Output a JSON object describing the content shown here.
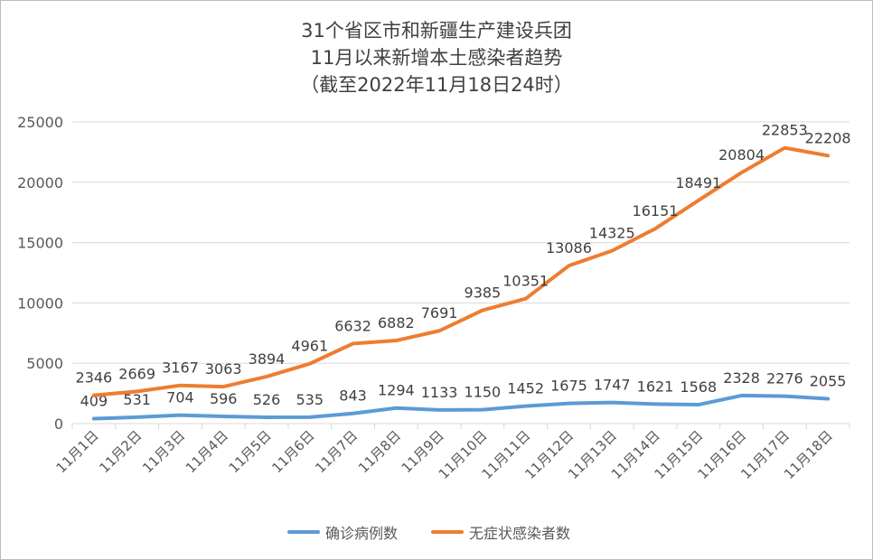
{
  "chart_data": {
    "type": "line",
    "title": [
      "31个省区市和新疆生产建设兵团",
      "11月以来新增本土感染者趋势",
      "（截至2022年11月18日24时）"
    ],
    "categories": [
      "11月1日",
      "11月2日",
      "11月3日",
      "11月4日",
      "11月5日",
      "11月6日",
      "11月7日",
      "11月8日",
      "11月9日",
      "11月10日",
      "11月11日",
      "11月12日",
      "11月13日",
      "11月14日",
      "11月15日",
      "11月16日",
      "11月17日",
      "11月18日"
    ],
    "series": [
      {
        "name": "确诊病例数",
        "color": "#5b9bd5",
        "values": [
          409,
          531,
          704,
          596,
          526,
          535,
          843,
          1294,
          1133,
          1150,
          1452,
          1675,
          1747,
          1621,
          1568,
          2328,
          2276,
          2055
        ]
      },
      {
        "name": "无症状感染者数",
        "color": "#ed7d31",
        "values": [
          2346,
          2669,
          3167,
          3063,
          3894,
          4961,
          6632,
          6882,
          7691,
          9385,
          10351,
          13086,
          14325,
          16151,
          18491,
          20804,
          22853,
          22208
        ]
      }
    ],
    "ylim": [
      0,
      25000
    ],
    "yticks": [
      "0",
      "5000",
      "10000",
      "15000",
      "20000",
      "25000"
    ],
    "grid": true,
    "legend": "bottom",
    "data_labels": true
  }
}
